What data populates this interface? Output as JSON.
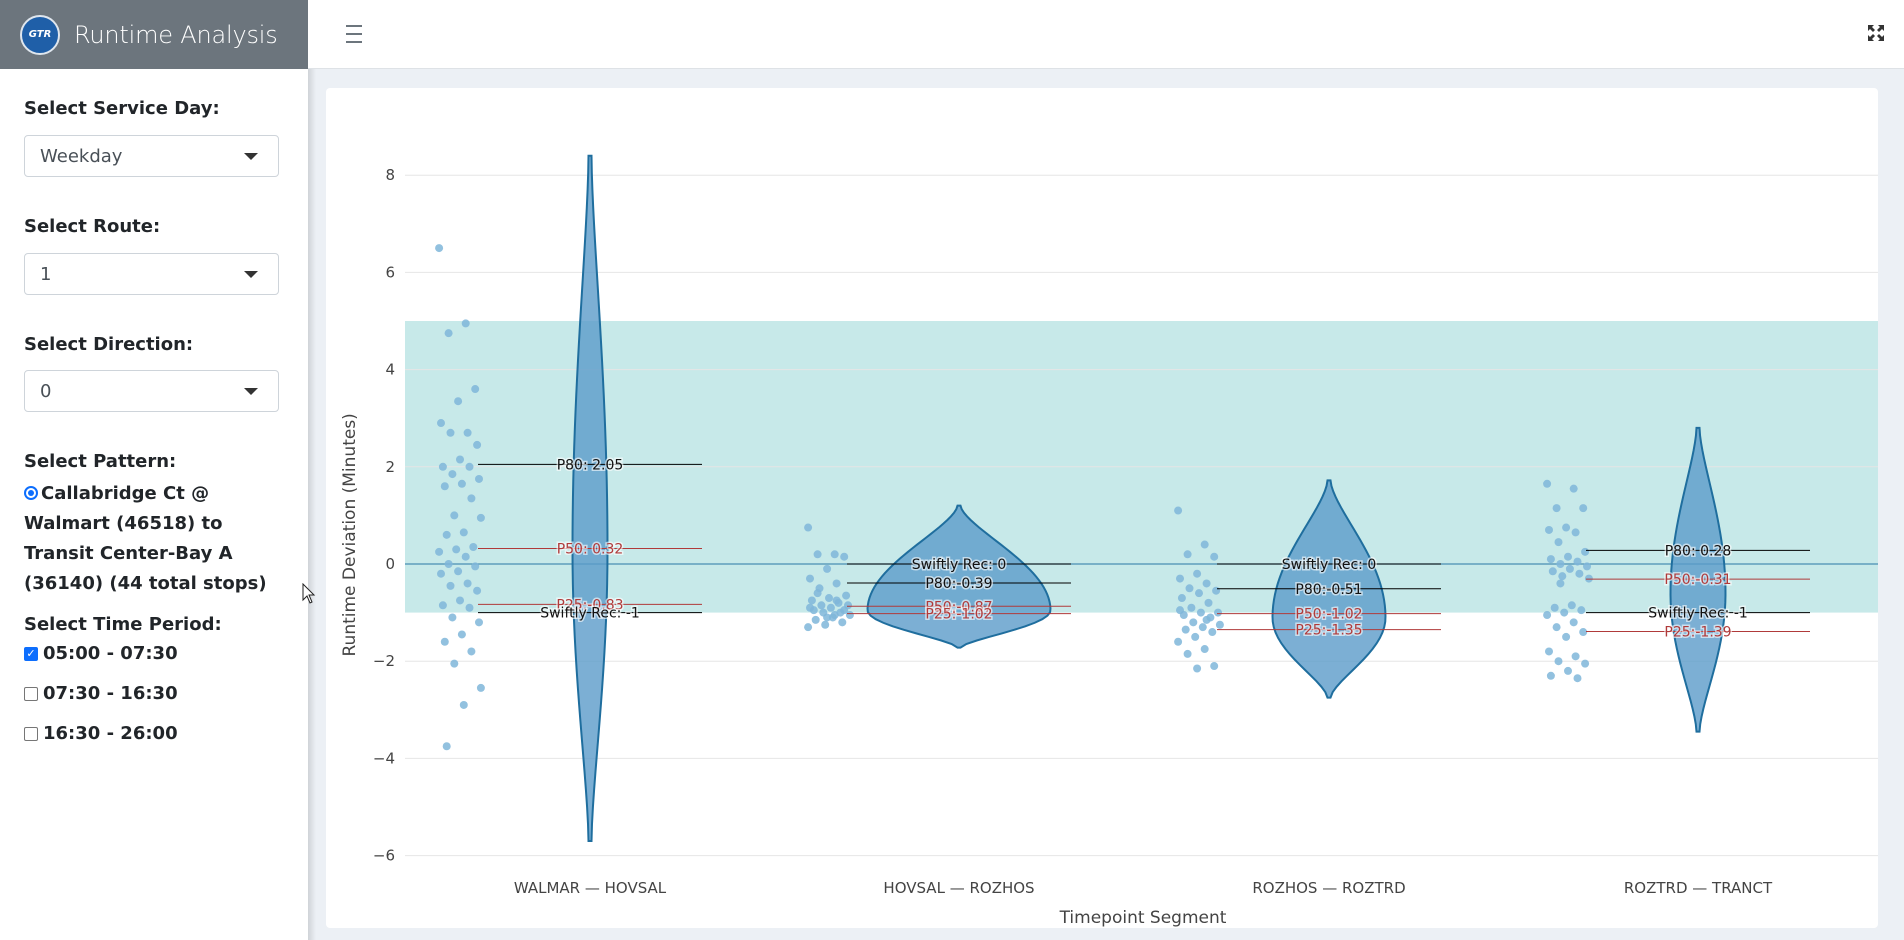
{
  "app": {
    "title": "Runtime Analysis",
    "logo_text": "GTR"
  },
  "sidebar": {
    "service_day": {
      "label": "Select Service Day:",
      "value": "Weekday"
    },
    "route": {
      "label": "Select Route:",
      "value": "1"
    },
    "direction": {
      "label": "Select Direction:",
      "value": "0"
    },
    "pattern": {
      "label": "Select Pattern:",
      "options": [
        {
          "text": "Callabridge Ct @ Walmart (46518) to Transit Center-Bay A (36140) (44 total stops)",
          "selected": true
        }
      ]
    },
    "time_period": {
      "label": "Select Time Period:",
      "options": [
        {
          "text": "05:00 - 07:30",
          "checked": true
        },
        {
          "text": "07:30 - 16:30",
          "checked": false
        },
        {
          "text": "16:30 - 26:00",
          "checked": false
        }
      ]
    }
  },
  "header": {
    "menu_icon": "hamburger-icon",
    "fullscreen_icon": "expand-icon"
  },
  "colors": {
    "violin": "#5b9bc9",
    "violin_stroke": "#1f6e9e",
    "band": "#b9e3e3",
    "points": "#7fb6d9",
    "p25p50": "#b03a3a",
    "marker": "#000000"
  },
  "chart_data": {
    "type": "violin",
    "xlabel": "Timepoint Segment",
    "ylabel": "Runtime Deviation (Minutes)",
    "ylim": [
      -6.5,
      8.5
    ],
    "yticks": [
      8,
      6,
      4,
      2,
      0,
      -2,
      -4,
      -6
    ],
    "ytick_labels": [
      "8",
      "6",
      "4",
      "2",
      "0",
      "−2",
      "−4",
      "−6"
    ],
    "band": [
      -1,
      5
    ],
    "zero_line": 0,
    "categories": [
      "WALMAR — HOVSAL",
      "HOVSAL — ROZHOS",
      "ROZHOS — ROZTRD",
      "ROZTRD — TRANCT"
    ],
    "segments": [
      {
        "min": -5.7,
        "max": 8.4,
        "lines": [
          {
            "label": "P80: 2.05",
            "value": 2.05,
            "kind": "p80"
          },
          {
            "label": "P50: 0.32",
            "value": 0.32,
            "kind": "p"
          },
          {
            "label": "P25:-0.83",
            "value": -0.83,
            "kind": "p"
          },
          {
            "label": "Swiftly Rec: -1",
            "value": -1,
            "kind": "rec"
          }
        ],
        "points": [
          6.5,
          4.95,
          4.75,
          3.6,
          3.35,
          2.9,
          2.7,
          2.7,
          2.45,
          2.15,
          2.0,
          2.0,
          1.85,
          1.75,
          1.65,
          1.6,
          1.35,
          1.0,
          0.95,
          0.65,
          0.6,
          0.35,
          0.3,
          0.25,
          0.15,
          0.0,
          -0.05,
          -0.15,
          -0.2,
          -0.4,
          -0.45,
          -0.55,
          -0.75,
          -0.85,
          -0.9,
          -1.1,
          -1.2,
          -1.45,
          -1.6,
          -1.8,
          -2.05,
          -2.55,
          -2.9,
          -3.75
        ]
      },
      {
        "min": -1.72,
        "max": 1.2,
        "lines": [
          {
            "label": "Swiftly Rec:  0",
            "value": 0,
            "kind": "rec"
          },
          {
            "label": "P80:-0.39",
            "value": -0.39,
            "kind": "p80"
          },
          {
            "label": "P50:-0.87",
            "value": -0.87,
            "kind": "p"
          },
          {
            "label": "P25:-1.02",
            "value": -1.02,
            "kind": "p"
          }
        ],
        "points": [
          0.75,
          0.2,
          0.2,
          0.15,
          -0.1,
          -0.3,
          -0.4,
          -0.5,
          -0.65,
          -0.7,
          -0.75,
          -0.8,
          -0.85,
          -0.85,
          -0.9,
          -0.95,
          -1.0,
          -1.0,
          -1.05,
          -1.1,
          -1.15,
          -1.2,
          -1.25,
          -1.3,
          -1.05,
          -0.6,
          -0.95,
          -1.1,
          -0.9,
          -0.75
        ]
      },
      {
        "min": -2.75,
        "max": 1.72,
        "lines": [
          {
            "label": "Swiftly Rec:  0",
            "value": 0,
            "kind": "rec"
          },
          {
            "label": "P80:-0.51",
            "value": -0.51,
            "kind": "p80"
          },
          {
            "label": "P50:-1.02",
            "value": -1.02,
            "kind": "p"
          },
          {
            "label": "P25:-1.35",
            "value": -1.35,
            "kind": "p"
          }
        ],
        "points": [
          1.1,
          0.4,
          0.2,
          0.15,
          -0.2,
          -0.3,
          -0.4,
          -0.5,
          -0.55,
          -0.6,
          -0.7,
          -0.8,
          -0.9,
          -1.0,
          -1.0,
          -1.05,
          -1.1,
          -1.2,
          -1.25,
          -1.3,
          -1.35,
          -1.4,
          -1.5,
          -1.6,
          -1.75,
          -1.85,
          -2.1,
          -2.15,
          -0.95,
          -1.15
        ]
      },
      {
        "min": -3.45,
        "max": 2.8,
        "lines": [
          {
            "label": "P80: 0.28",
            "value": 0.28,
            "kind": "p80"
          },
          {
            "label": "P50:-0.31",
            "value": -0.31,
            "kind": "p"
          },
          {
            "label": "Swiftly Rec: -1",
            "value": -1,
            "kind": "rec"
          },
          {
            "label": "P25:-1.39",
            "value": -1.39,
            "kind": "p"
          }
        ],
        "points": [
          1.65,
          1.55,
          1.15,
          1.15,
          0.75,
          0.7,
          0.65,
          0.45,
          0.25,
          0.15,
          0.1,
          0.05,
          0.0,
          -0.05,
          -0.1,
          -0.15,
          -0.2,
          -0.25,
          -0.3,
          -0.85,
          -0.9,
          -0.95,
          -1.0,
          -1.05,
          -1.2,
          -1.3,
          -1.4,
          -1.5,
          -1.8,
          -1.9,
          -2.0,
          -2.05,
          -2.2,
          -2.3,
          -2.35,
          -0.4
        ]
      }
    ]
  }
}
